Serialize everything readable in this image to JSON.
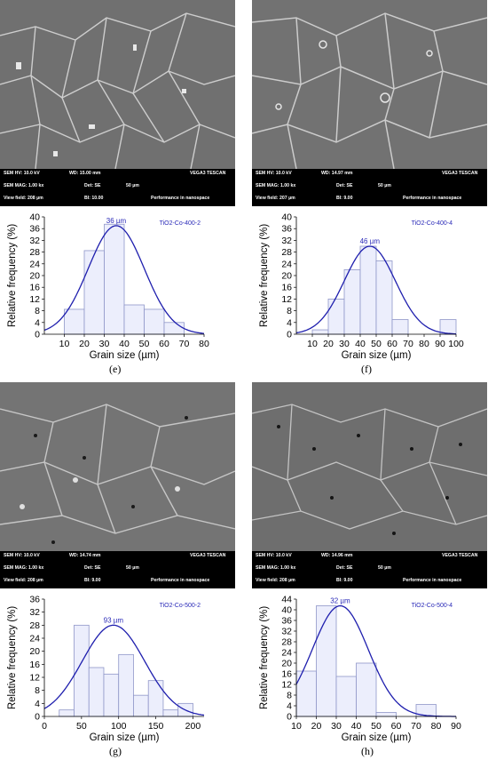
{
  "panels": [
    {
      "sem": {
        "hv": "SEM HV: 10.0 kV",
        "wd": "WD: 15.00 mm",
        "brand": "VEGA3 TESCAN",
        "mag": "SEM MAG: 1.00 kx",
        "det": "Det: SE",
        "scale": "50 µm",
        "field": "View field: 208 µm",
        "bi": "BI: 10.00",
        "perf": "Performance in nanospace"
      },
      "chart_data": {
        "type": "bar",
        "title": "TiO2-Co-400-2",
        "peak_label": "36 µm",
        "xlabel": "Grain size (µm)",
        "ylabel": "Relative frequency (%)",
        "bin_edges": [
          10,
          20,
          30,
          40,
          50,
          60,
          70
        ],
        "values": [
          8.5,
          28.5,
          37.5,
          10,
          8.5,
          4
        ],
        "xlim": [
          0,
          80
        ],
        "ylim": [
          0,
          40
        ],
        "xticks": [
          10,
          20,
          30,
          40,
          50,
          60,
          70,
          80
        ],
        "yticks": [
          0,
          4,
          8,
          12,
          16,
          20,
          24,
          28,
          32,
          36,
          40
        ],
        "fit": {
          "mean": 36,
          "sd": 14,
          "peak": 37
        }
      },
      "label": "(e)"
    },
    {
      "sem": {
        "hv": "SEM HV: 10.0 kV",
        "wd": "WD: 14.97 mm",
        "brand": "VEGA3 TESCAN",
        "mag": "SEM MAG: 1.00 kx",
        "det": "Det: SE",
        "scale": "50 µm",
        "field": "View field: 207 µm",
        "bi": "BI: 9.00",
        "perf": "Performance in nanospace"
      },
      "chart_data": {
        "type": "bar",
        "title": "TiO2-Co-400-4",
        "peak_label": "46 µm",
        "xlabel": "Grain size (µm)",
        "ylabel": "Relative frequency (%)",
        "bin_edges": [
          10,
          20,
          30,
          40,
          50,
          60,
          70,
          80,
          90,
          100
        ],
        "values": [
          1.5,
          12,
          22,
          30,
          25,
          5,
          0,
          0,
          5
        ],
        "xlim": [
          0,
          100
        ],
        "ylim": [
          0,
          40
        ],
        "xticks": [
          10,
          20,
          30,
          40,
          50,
          60,
          70,
          80,
          90,
          100
        ],
        "yticks": [
          0,
          4,
          8,
          12,
          16,
          20,
          24,
          28,
          32,
          36,
          40
        ],
        "fit": {
          "mean": 46,
          "sd": 16,
          "peak": 30
        }
      },
      "label": "(f)"
    },
    {
      "sem": {
        "hv": "SEM HV: 10.0 kV",
        "wd": "WD: 14.74 mm",
        "brand": "VEGA3 TESCAN",
        "mag": "SEM MAG: 1.00 kx",
        "det": "Det: SE",
        "scale": "50 µm",
        "field": "View field: 208 µm",
        "bi": "BI: 9.00",
        "perf": "Performance in nanospace"
      },
      "chart_data": {
        "type": "bar",
        "title": "TiO2-Co-500-2",
        "peak_label": "93 µm",
        "xlabel": "Grain size (µm)",
        "ylabel": "Relative frequency (%)",
        "bin_edges": [
          20,
          40,
          60,
          80,
          100,
          120,
          140,
          160,
          180,
          200
        ],
        "values": [
          2,
          28,
          15,
          13,
          19,
          6.5,
          11,
          2,
          4
        ],
        "xlim": [
          0,
          215
        ],
        "ylim": [
          0,
          36
        ],
        "xticks": [
          0,
          50,
          100,
          150,
          200
        ],
        "yticks": [
          0,
          4,
          8,
          12,
          16,
          20,
          24,
          28,
          32,
          36
        ],
        "fit": {
          "mean": 93,
          "sd": 42,
          "peak": 28
        }
      },
      "label": "(g)"
    },
    {
      "sem": {
        "hv": "SEM HV: 10.0 kV",
        "wd": "WD: 14.96 mm",
        "brand": "VEGA3 TESCAN",
        "mag": "SEM MAG: 1.00 kx",
        "det": "Det: SE",
        "scale": "50 µm",
        "field": "View field: 208 µm",
        "bi": "BI: 9.00",
        "perf": "Performance in nanospace"
      },
      "chart_data": {
        "type": "bar",
        "title": "TiO2-Co-500-4",
        "peak_label": "32 µm",
        "xlabel": "Grain size (µm)",
        "ylabel": "Relative frequency (%)",
        "bin_edges": [
          10,
          20,
          30,
          40,
          50,
          60,
          70,
          80
        ],
        "values": [
          17,
          41.5,
          15,
          20,
          1.5,
          0,
          4.5
        ],
        "xlim": [
          10,
          90
        ],
        "ylim": [
          0,
          44
        ],
        "xticks": [
          10,
          20,
          30,
          40,
          50,
          60,
          70,
          80,
          90
        ],
        "yticks": [
          0,
          4,
          8,
          12,
          16,
          20,
          24,
          28,
          32,
          36,
          40,
          44
        ],
        "fit": {
          "mean": 32,
          "sd": 14,
          "peak": 41.5
        }
      },
      "label": "(h)"
    }
  ],
  "colors": {
    "bar_fill": "#eceefc",
    "bar_stroke": "#8f96c8",
    "curve": "#1f1fae",
    "annot": "#2a2ab8"
  }
}
